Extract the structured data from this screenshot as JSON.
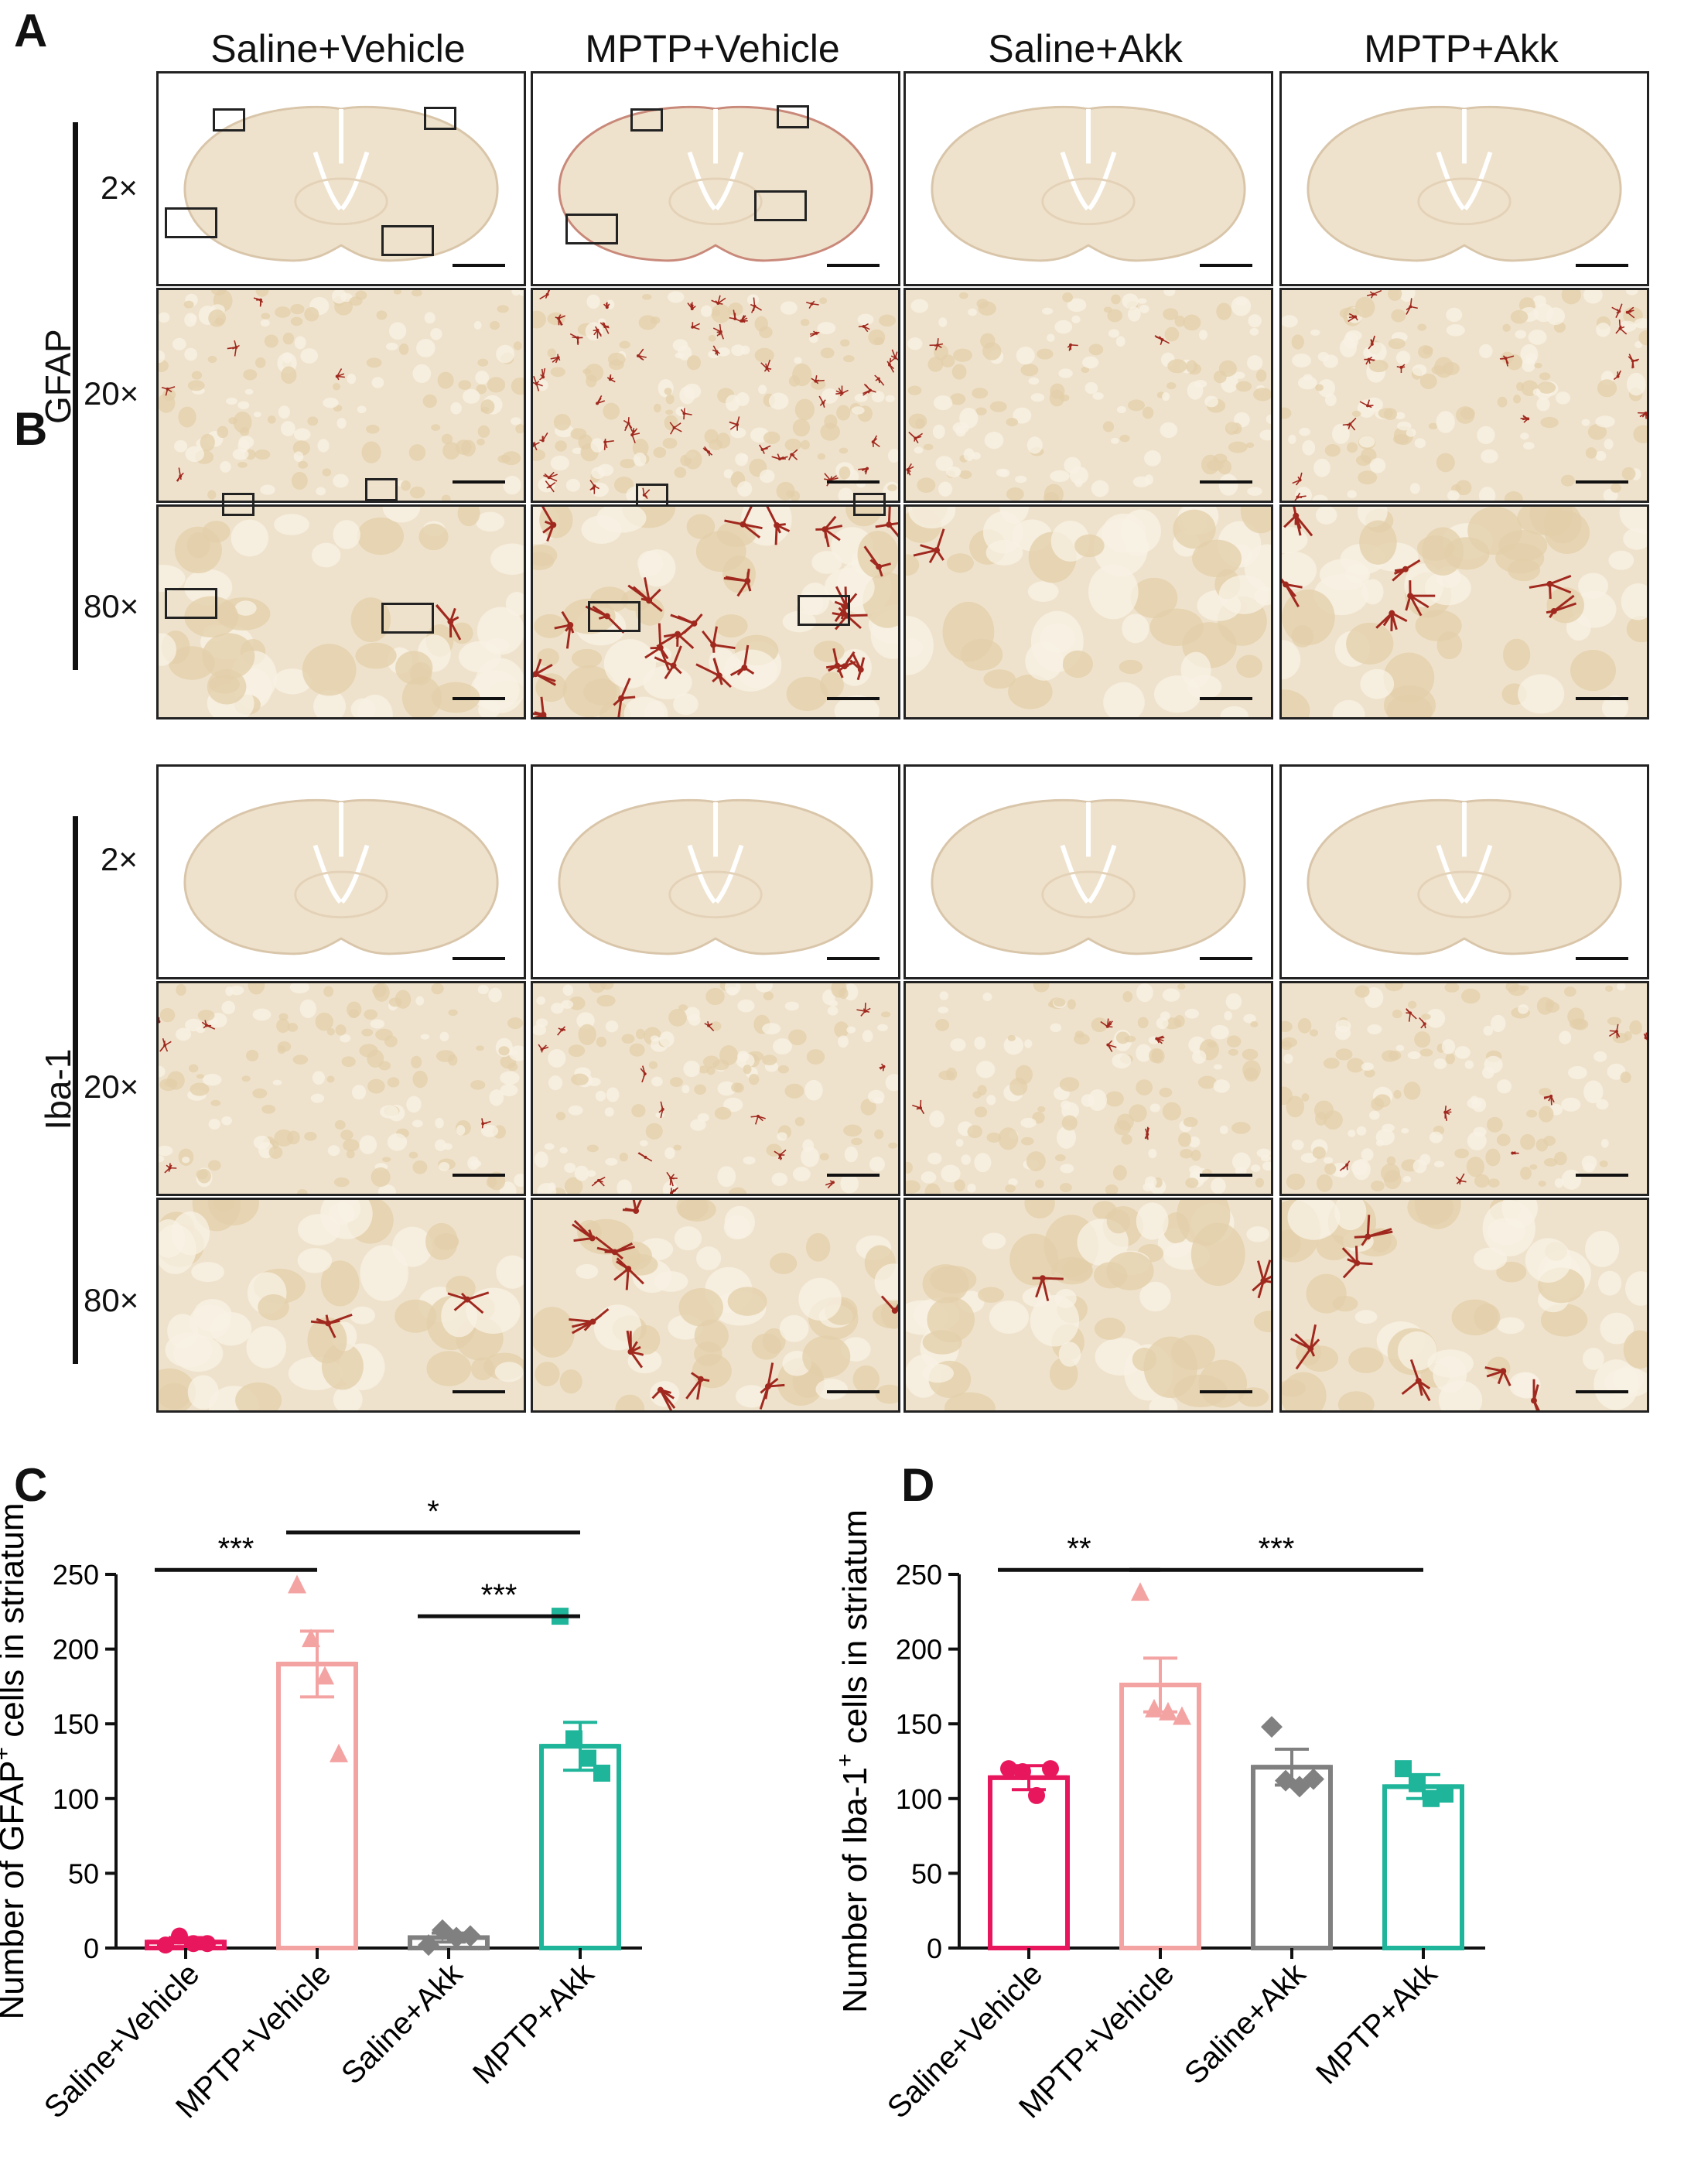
{
  "figure": {
    "panels": [
      "A",
      "B",
      "C",
      "D"
    ],
    "groups": [
      "Saline+Vehicle",
      "MPTP+Vehicle",
      "Saline+Akk",
      "MPTP+Akk"
    ],
    "magnifications": [
      "2×",
      "20×",
      "80×"
    ],
    "stain_a": "GFAP",
    "stain_b": "Iba-1",
    "colors": {
      "saline_vehicle": "#e8175d",
      "mptp_vehicle": "#f4a3a3",
      "saline_akk": "#808080",
      "mptp_akk": "#1fb59a",
      "tissue": "#efe2cc",
      "stain": "#a0281e"
    }
  },
  "chart_data": [
    {
      "panel": "C",
      "type": "bar",
      "categories": [
        "Saline+Vehicle",
        "MPTP+Vehicle",
        "Saline+Akk",
        "MPTP+Akk"
      ],
      "values": [
        4,
        190,
        7,
        135
      ],
      "sem": [
        3,
        22,
        3,
        16
      ],
      "points": [
        [
          2,
          8,
          3,
          3
        ],
        [
          243,
          207,
          182,
          130
        ],
        [
          2,
          12,
          7,
          8
        ],
        [
          222,
          140,
          127,
          117
        ]
      ],
      "ylabel": "Number of GFAP",
      "ylabel_sup": "+",
      "ylabel_suffix": " cells in striatum",
      "yticks": [
        0,
        50,
        100,
        150,
        200,
        250
      ],
      "ylim": [
        0,
        250
      ],
      "markers": [
        "circle",
        "triangle",
        "diamond",
        "square"
      ],
      "significance": [
        {
          "from": 0,
          "to": 1,
          "label": "***",
          "level": 1
        },
        {
          "from": 1,
          "to": 3,
          "label": "*",
          "level": 2
        },
        {
          "from": 2,
          "to": 3,
          "label": "***",
          "level": 0
        }
      ]
    },
    {
      "panel": "D",
      "type": "bar",
      "categories": [
        "Saline+Vehicle",
        "MPTP+Vehicle",
        "Saline+Akk",
        "MPTP+Akk"
      ],
      "values": [
        114,
        176,
        121,
        108
      ],
      "sem": [
        8,
        18,
        12,
        8
      ],
      "points": [
        [
          120,
          118,
          102,
          120
        ],
        [
          238,
          160,
          158,
          155
        ],
        [
          148,
          112,
          108,
          113
        ],
        [
          120,
          110,
          100,
          103
        ]
      ],
      "ylabel": "Number of Iba-1",
      "ylabel_sup": "+",
      "ylabel_suffix": " cells in striatum",
      "yticks": [
        0,
        50,
        100,
        150,
        200,
        250
      ],
      "ylim": [
        0,
        250
      ],
      "markers": [
        "circle",
        "triangle",
        "diamond",
        "square"
      ],
      "significance": [
        {
          "from": 0,
          "to": 1,
          "label": "**",
          "level": 1
        },
        {
          "from": 1,
          "to": 3,
          "label": "***",
          "level": 1
        }
      ]
    }
  ]
}
